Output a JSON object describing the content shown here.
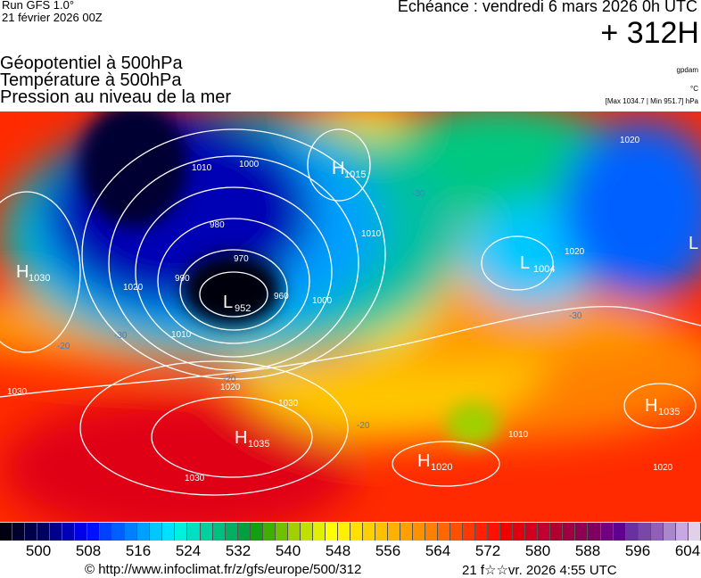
{
  "header": {
    "run": "Run GFS 1.0°",
    "run_date": "21 février 2026 00Z",
    "valid": "Echéance : vendredi 6 mars 2026 0h UTC",
    "lead": "+ 312H",
    "title_lines": [
      "Géopotentiel à 500hPa",
      "Température à 500hPa",
      "Pression au niveau de la mer"
    ],
    "unit_geo": "gpdam",
    "unit_temp": "°C",
    "pressure_range": "[Max 1034.7 | Min 951.7] hPa"
  },
  "map": {
    "centers": [
      {
        "type": "H",
        "value": "1030"
      },
      {
        "type": "L",
        "value": "952"
      },
      {
        "type": "H",
        "value": "1035"
      },
      {
        "type": "H",
        "value": "1020"
      },
      {
        "type": "L",
        "value": "1004"
      },
      {
        "type": "H",
        "value": "1035"
      },
      {
        "type": "H",
        "value": "1015"
      },
      {
        "type": "L",
        "value": ""
      }
    ],
    "isobar_labels": [
      "1010",
      "1000",
      "980",
      "970",
      "960",
      "990",
      "1020",
      "1030",
      "1010",
      "1020",
      "1030",
      "1020",
      "1010",
      "1000",
      "1030",
      "1020",
      "1010",
      "1020"
    ],
    "temp_labels": [
      "-30",
      "-20",
      "-30",
      "-20",
      "-30",
      "-20"
    ]
  },
  "colorbar": {
    "colors": [
      "#000010",
      "#00002a",
      "#00004a",
      "#000060",
      "#00008c",
      "#0000b4",
      "#0000e6",
      "#0010ff",
      "#0040ff",
      "#0060ff",
      "#0080ff",
      "#00a0ff",
      "#00c8ff",
      "#00e0ff",
      "#00f0e0",
      "#00e0c0",
      "#00d0a0",
      "#00c080",
      "#00b060",
      "#00a040",
      "#10a010",
      "#40b000",
      "#70c000",
      "#a0d000",
      "#c0e000",
      "#e0f000",
      "#ffff00",
      "#fff000",
      "#ffe000",
      "#ffd000",
      "#ffc000",
      "#ffb000",
      "#ffa000",
      "#ff9000",
      "#ff8000",
      "#ff6800",
      "#ff5000",
      "#ff3800",
      "#ff2000",
      "#ff1000",
      "#f00000",
      "#e00010",
      "#d00020",
      "#c00030",
      "#b00030",
      "#a00040",
      "#900050",
      "#800060",
      "#700080",
      "#600090",
      "#6830a0",
      "#7848a8",
      "#9060b8",
      "#a888c8",
      "#c8a8e0",
      "#e0d0e8"
    ],
    "labels": [
      "500",
      "508",
      "516",
      "524",
      "532",
      "540",
      "548",
      "556",
      "564",
      "572",
      "580",
      "588",
      "596",
      "604"
    ]
  },
  "footer": {
    "credit": "© http://www.infoclimat.fr/z/gfs/europe/500/312",
    "generated": "21 f☆☆vr. 2026  4:55 UTC"
  }
}
